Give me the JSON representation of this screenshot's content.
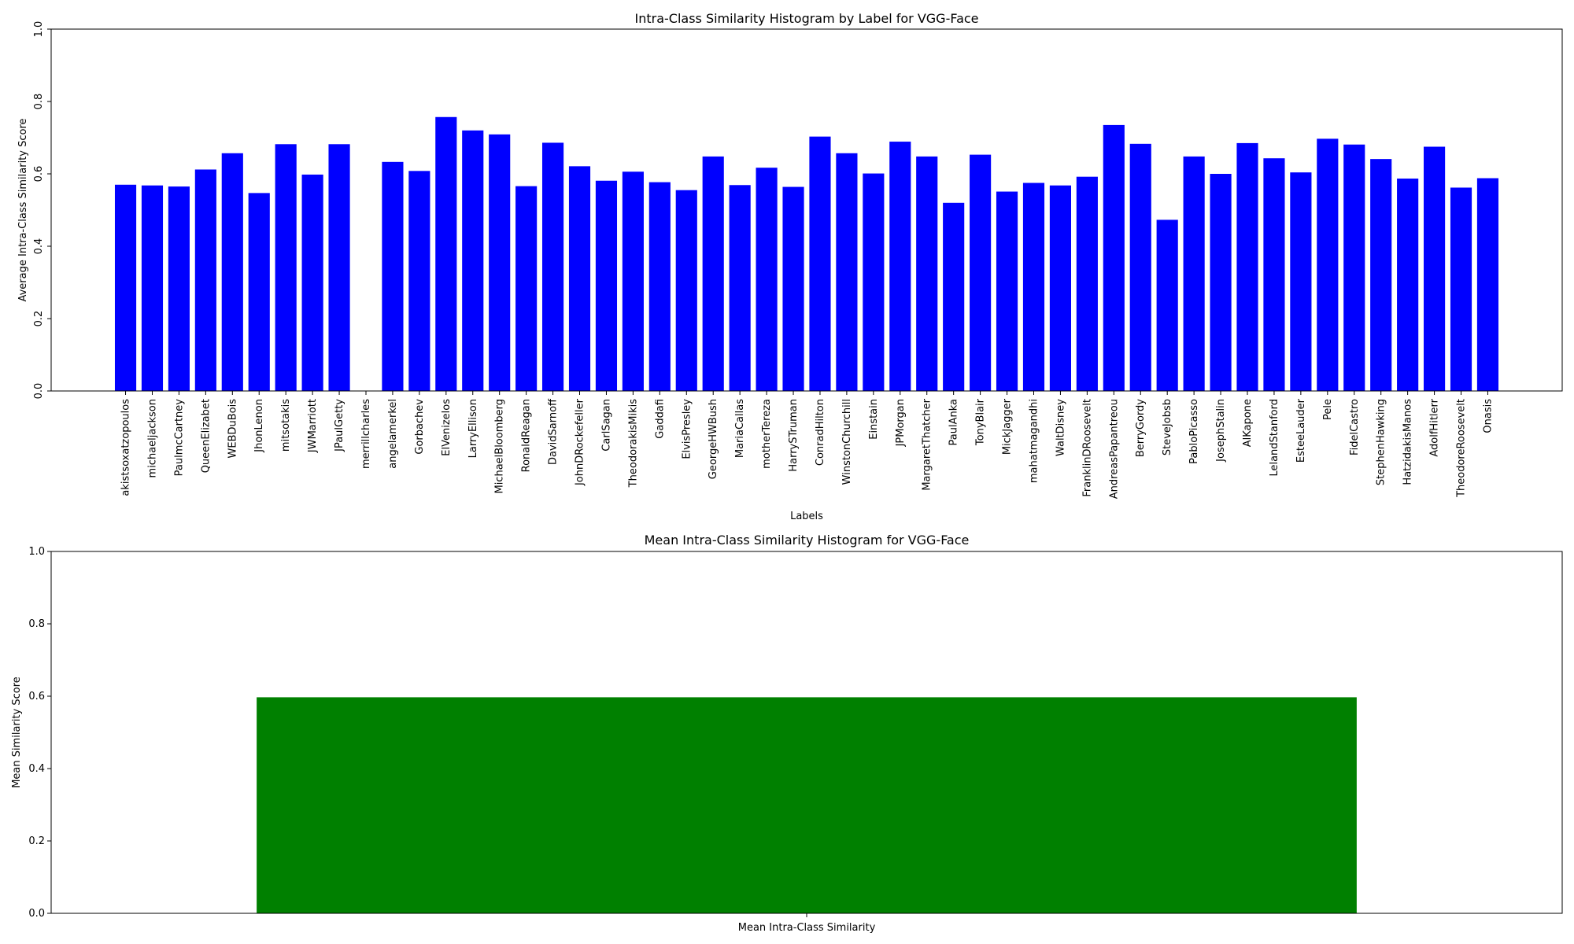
{
  "chart_data": [
    {
      "type": "bar",
      "title": "Intra-Class Similarity Histogram by Label for VGG-Face",
      "xlabel": "Labels",
      "ylabel": "Average Intra-Class Similarity Score",
      "ylim": [
        0,
        1
      ],
      "yticks": [
        "0.0",
        "0.2",
        "0.4",
        "0.6",
        "0.8",
        "1.0"
      ],
      "color": "#0000ff",
      "categories": [
        "akistsoxatzopoulos",
        "michaeljackson",
        "PaulmcCartney",
        "QueenElizabet",
        "WEBDuBois",
        "JhonLenon",
        "mitsotakis",
        "JWMarriott",
        "JPaulGetty",
        "merrillcharles",
        "angelamerkel",
        "Gorbachev",
        "ElVenizelos",
        "LarryEllison",
        "MichaelBloomberg",
        "RonaldReagan",
        "DavidSarnoff",
        "JohnDRockefeller",
        "CarlSagan",
        "TheodorakisMikis",
        "Gaddafi",
        "ElvisPresley",
        "GeorgeHWBush",
        "MariaCallas",
        "motherTereza",
        "HarrySTruman",
        "ConradHilton",
        "WinstonChurchill",
        "Einstain",
        "JPMorgan",
        "MargaretThatcher",
        "PaulAnka",
        "TonyBlair",
        "MickJagger",
        "mahatmagandhi",
        "WaltDisney",
        "FranklinDRoosevelt",
        "AndreasPapantreou",
        "BerryGordy",
        "SteveJobsb",
        "PabloPicasso",
        "JosephStalin",
        "AlKapone",
        "LelandStanford",
        "EsteeLauder",
        "Pele",
        "FidelCastro",
        "StephenHawking",
        "HatzidakisManos",
        "AdolfHitlerr",
        "TheodoreRoosevelt",
        "Onasis"
      ],
      "values": [
        0.57,
        0.568,
        0.565,
        0.612,
        0.657,
        0.547,
        0.682,
        0.598,
        0.682,
        0.0,
        0.633,
        0.608,
        0.757,
        0.72,
        0.709,
        0.566,
        0.686,
        0.621,
        0.581,
        0.606,
        0.577,
        0.555,
        0.648,
        0.569,
        0.617,
        0.564,
        0.703,
        0.657,
        0.601,
        0.689,
        0.648,
        0.52,
        0.653,
        0.551,
        0.575,
        0.568,
        0.592,
        0.735,
        0.683,
        0.473,
        0.648,
        0.6,
        0.685,
        0.643,
        0.604,
        0.697,
        0.681,
        0.641,
        0.587,
        0.675,
        0.562,
        0.588
      ]
    },
    {
      "type": "bar",
      "title": "Mean Intra-Class Similarity Histogram for VGG-Face",
      "xlabel": "",
      "ylabel": "Mean Similarity Score",
      "ylim": [
        0,
        1
      ],
      "yticks": [
        "0.0",
        "0.2",
        "0.4",
        "0.6",
        "0.8",
        "1.0"
      ],
      "color": "#008000",
      "categories": [
        "Mean Intra-Class Similarity"
      ],
      "values": [
        0.597
      ]
    }
  ]
}
